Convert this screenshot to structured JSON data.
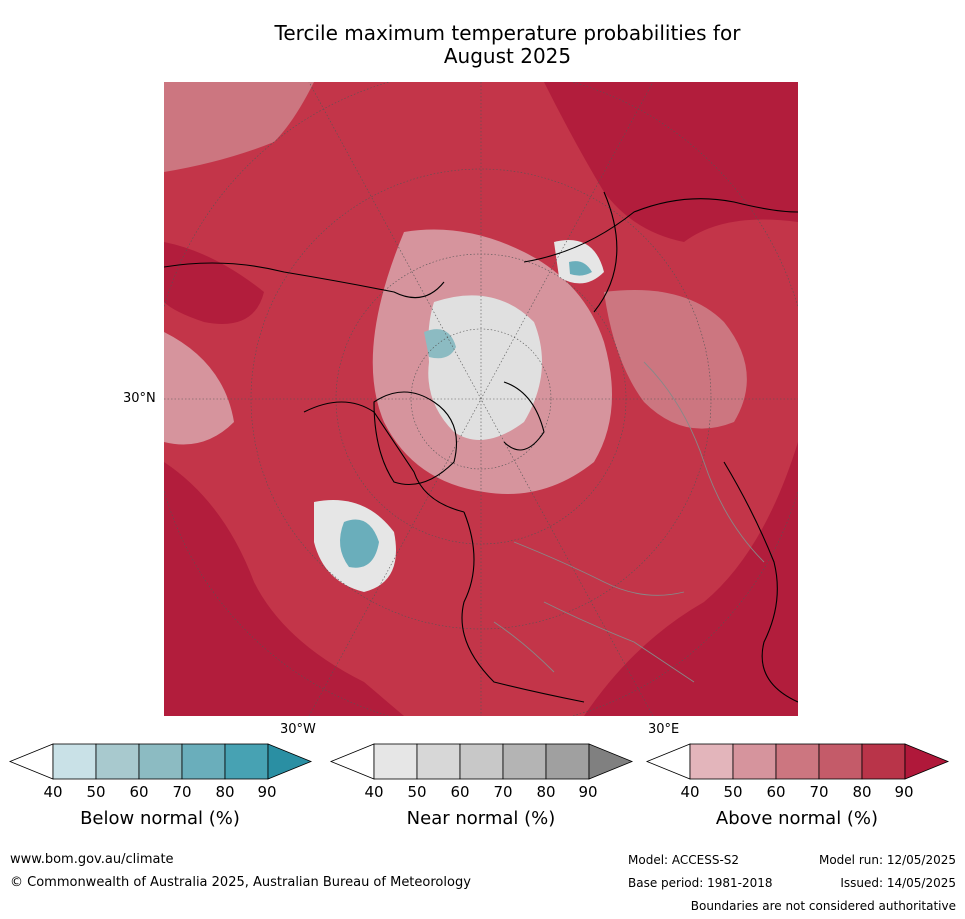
{
  "title_line1": "Tercile maximum temperature probabilities for",
  "title_line2": "August 2025",
  "map": {
    "lat_label": "30°N",
    "lon_labels": [
      "30°W",
      "30°E"
    ]
  },
  "colorbars": [
    {
      "label": "Below normal (%)",
      "ticks": [
        "40",
        "50",
        "60",
        "70",
        "80",
        "90"
      ],
      "colors": [
        "#ffffff",
        "#c9e1e7",
        "#a8c9ce",
        "#8cbbc2",
        "#6aaebb",
        "#47a2b3",
        "#2a8fa3"
      ]
    },
    {
      "label": "Near normal (%)",
      "ticks": [
        "40",
        "50",
        "60",
        "70",
        "80",
        "90"
      ],
      "colors": [
        "#ffffff",
        "#e6e6e6",
        "#d7d7d7",
        "#c8c8c8",
        "#b4b4b4",
        "#a0a0a0",
        "#808080"
      ]
    },
    {
      "label": "Above normal (%)",
      "ticks": [
        "40",
        "50",
        "60",
        "70",
        "80",
        "90"
      ],
      "colors": [
        "#ffffff",
        "#e3b5bb",
        "#d6949d",
        "#cc7680",
        "#c45b69",
        "#b93449",
        "#b0183a"
      ]
    }
  ],
  "footer": {
    "website": "www.bom.gov.au/climate",
    "copyright": "© Commonwealth of Australia 2025, Australian Bureau of Meteorology",
    "model": "Model: ACCESS-S2",
    "base_period": "Base period: 1981-2018",
    "model_run": "Model run: 12/05/2025",
    "issued": "Issued: 14/05/2025",
    "disclaimer": "Boundaries are not considered authoritative"
  }
}
